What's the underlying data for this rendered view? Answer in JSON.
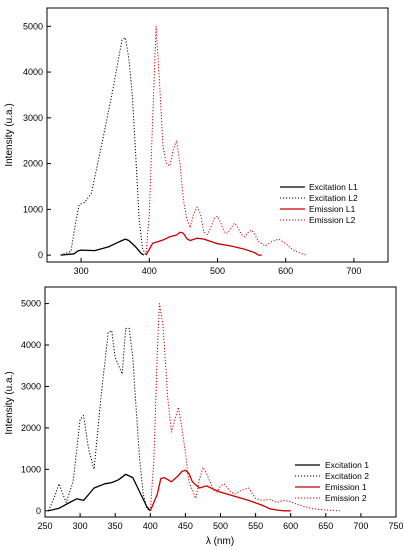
{
  "chart_data": [
    {
      "type": "line",
      "xlabel": "",
      "ylabel": "Intensity (u.a.)",
      "xlim": [
        250,
        750
      ],
      "ylim": [
        -150,
        5400
      ],
      "xticks": [
        300,
        400,
        500,
        600,
        700
      ],
      "yticks": [
        0,
        1000,
        2000,
        3000,
        4000,
        5000
      ],
      "grid": false,
      "legend_position": "right",
      "series": [
        {
          "name": "Excitation L1",
          "color": "#000000",
          "style": "solid",
          "x": [
            270,
            290,
            295,
            300,
            320,
            340,
            350,
            360,
            365,
            370,
            380,
            388,
            392
          ],
          "y": [
            0,
            30,
            90,
            110,
            100,
            180,
            250,
            320,
            350,
            320,
            180,
            40,
            0
          ]
        },
        {
          "name": "Excitation L2",
          "color": "#000000",
          "style": "dotted",
          "x": [
            270,
            285,
            292,
            297,
            305,
            315,
            330,
            345,
            355,
            360,
            365,
            370,
            375,
            380,
            385,
            390,
            395
          ],
          "y": [
            0,
            80,
            700,
            1100,
            1150,
            1350,
            2400,
            3500,
            4300,
            4700,
            4750,
            4300,
            3500,
            2200,
            800,
            150,
            0
          ]
        },
        {
          "name": "Emission  L1",
          "color": "#cc0000",
          "style": "solid",
          "x": [
            395,
            402,
            405,
            410,
            420,
            430,
            440,
            445,
            450,
            455,
            460,
            470,
            480,
            500,
            520,
            540,
            555,
            560,
            565
          ],
          "y": [
            0,
            180,
            260,
            280,
            330,
            400,
            440,
            500,
            480,
            360,
            320,
            370,
            350,
            250,
            200,
            130,
            50,
            0,
            0
          ]
        },
        {
          "name": "Emission  L2",
          "color": "#cc0000",
          "style": "dotted",
          "x": [
            395,
            400,
            405,
            410,
            415,
            420,
            425,
            430,
            435,
            440,
            445,
            450,
            455,
            460,
            465,
            470,
            475,
            480,
            485,
            490,
            495,
            500,
            505,
            510,
            515,
            520,
            525,
            530,
            535,
            540,
            545,
            550,
            555,
            560,
            565,
            570,
            580,
            590,
            600,
            610,
            620,
            630
          ],
          "y": [
            0,
            900,
            3000,
            5000,
            3800,
            2400,
            2000,
            1950,
            2300,
            2500,
            2000,
            1200,
            800,
            600,
            900,
            1050,
            900,
            500,
            450,
            600,
            800,
            850,
            700,
            500,
            480,
            600,
            700,
            600,
            450,
            400,
            500,
            550,
            450,
            300,
            250,
            200,
            300,
            350,
            250,
            120,
            50,
            0
          ]
        }
      ]
    },
    {
      "type": "line",
      "xlabel": "λ (nm)",
      "ylabel": "Intensity (u.a.)",
      "xlim": [
        250,
        750
      ],
      "ylim": [
        -150,
        5400
      ],
      "xticks": [
        250,
        300,
        350,
        400,
        450,
        500,
        550,
        600,
        650,
        700,
        750
      ],
      "yticks": [
        0,
        1000,
        2000,
        3000,
        4000,
        5000
      ],
      "grid": false,
      "legend_position": "right",
      "series": [
        {
          "name": "Excitation 1",
          "color": "#000000",
          "style": "solid",
          "x": [
            255,
            270,
            285,
            295,
            305,
            320,
            335,
            345,
            355,
            365,
            375,
            385,
            395,
            400
          ],
          "y": [
            0,
            60,
            200,
            290,
            250,
            550,
            650,
            680,
            750,
            880,
            800,
            450,
            100,
            0
          ]
        },
        {
          "name": "Excitation 2",
          "color": "#000000",
          "style": "dotted",
          "x": [
            255,
            265,
            270,
            280,
            290,
            300,
            305,
            312,
            320,
            330,
            340,
            345,
            350,
            360,
            365,
            370,
            375,
            380,
            385,
            390,
            395,
            400
          ],
          "y": [
            0,
            400,
            650,
            200,
            700,
            2200,
            2300,
            1500,
            1000,
            2800,
            4300,
            4350,
            3700,
            3300,
            4400,
            4400,
            3700,
            2400,
            1200,
            400,
            50,
            0
          ]
        },
        {
          "name": "Emission  1",
          "color": "#cc0000",
          "style": "solid",
          "x": [
            400,
            410,
            415,
            420,
            430,
            440,
            445,
            450,
            455,
            460,
            470,
            480,
            490,
            500,
            520,
            540,
            560,
            570,
            580,
            590,
            600
          ],
          "y": [
            0,
            400,
            780,
            800,
            700,
            850,
            950,
            980,
            900,
            700,
            550,
            600,
            520,
            450,
            350,
            250,
            130,
            50,
            20,
            0,
            0
          ]
        },
        {
          "name": "Emission  2",
          "color": "#cc0000",
          "style": "dotted",
          "x": [
            400,
            405,
            410,
            413,
            418,
            425,
            430,
            435,
            440,
            445,
            450,
            455,
            460,
            465,
            470,
            475,
            480,
            485,
            490,
            495,
            500,
            505,
            510,
            515,
            520,
            530,
            540,
            550,
            560,
            570,
            580,
            590,
            600,
            610,
            620,
            630,
            650,
            670
          ],
          "y": [
            0,
            1200,
            3800,
            5000,
            4500,
            2700,
            1900,
            2200,
            2500,
            2000,
            1400,
            700,
            500,
            300,
            750,
            1050,
            900,
            700,
            500,
            450,
            600,
            650,
            550,
            450,
            400,
            500,
            550,
            300,
            250,
            280,
            200,
            250,
            220,
            150,
            100,
            50,
            20,
            0
          ]
        }
      ]
    }
  ]
}
